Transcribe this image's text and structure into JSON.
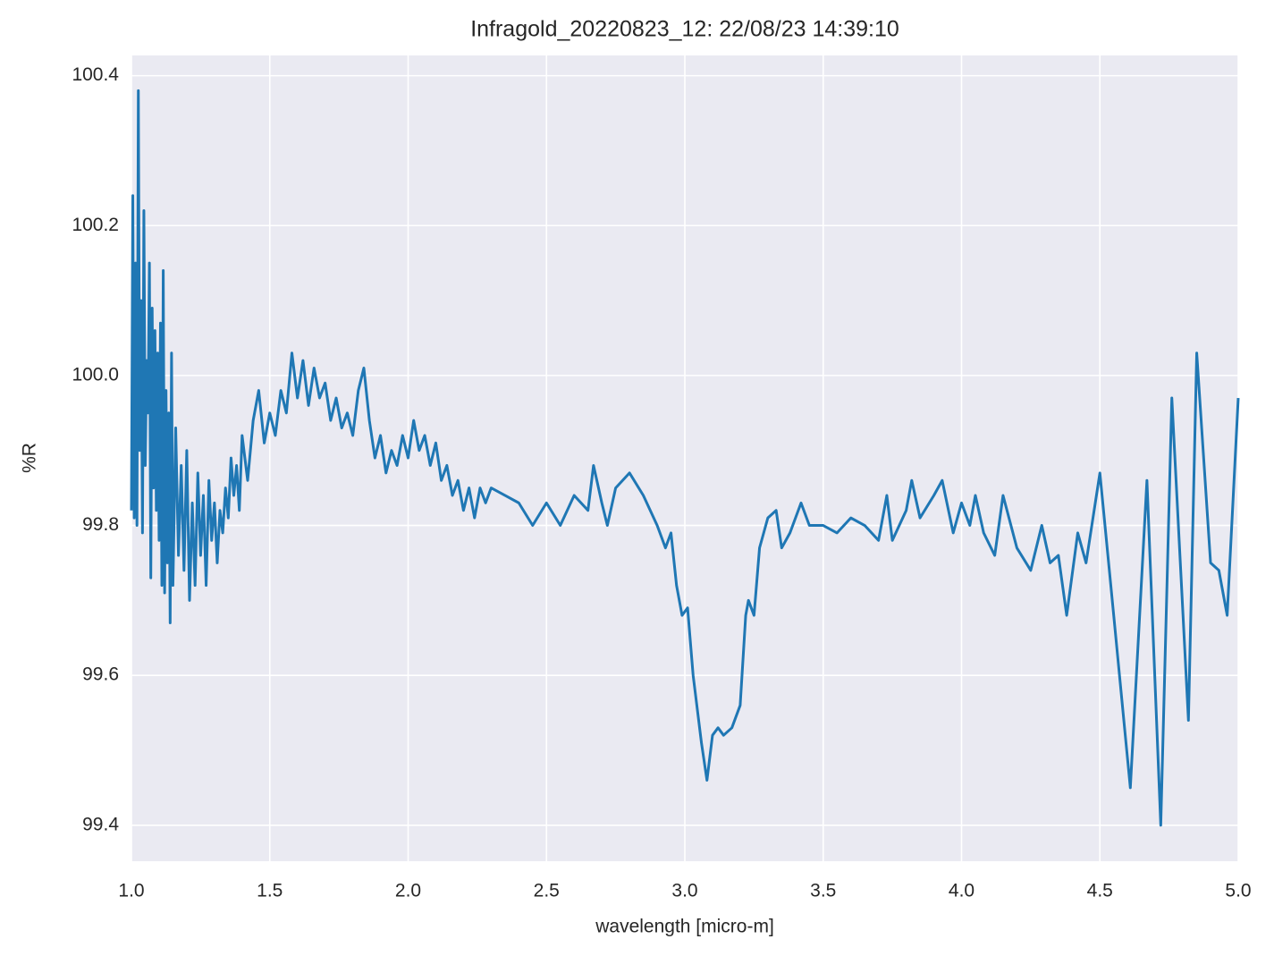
{
  "chart_data": {
    "type": "line",
    "title": "Infragold_20220823_12:  22/08/23 14:39:10",
    "xlabel": "wavelength [micro-m]",
    "ylabel": "%R",
    "x": [
      1.0,
      1.005,
      1.01,
      1.015,
      1.02,
      1.025,
      1.03,
      1.035,
      1.04,
      1.045,
      1.05,
      1.055,
      1.06,
      1.065,
      1.07,
      1.075,
      1.08,
      1.085,
      1.09,
      1.095,
      1.1,
      1.105,
      1.11,
      1.115,
      1.12,
      1.125,
      1.13,
      1.135,
      1.14,
      1.145,
      1.15,
      1.16,
      1.17,
      1.18,
      1.19,
      1.2,
      1.21,
      1.22,
      1.23,
      1.24,
      1.25,
      1.26,
      1.27,
      1.28,
      1.29,
      1.3,
      1.31,
      1.32,
      1.33,
      1.34,
      1.35,
      1.36,
      1.37,
      1.38,
      1.39,
      1.4,
      1.42,
      1.44,
      1.46,
      1.48,
      1.5,
      1.52,
      1.54,
      1.56,
      1.58,
      1.6,
      1.62,
      1.64,
      1.66,
      1.68,
      1.7,
      1.72,
      1.74,
      1.76,
      1.78,
      1.8,
      1.82,
      1.84,
      1.86,
      1.88,
      1.9,
      1.92,
      1.94,
      1.96,
      1.98,
      2.0,
      2.02,
      2.04,
      2.06,
      2.08,
      2.1,
      2.12,
      2.14,
      2.16,
      2.18,
      2.2,
      2.22,
      2.24,
      2.26,
      2.28,
      2.3,
      2.35,
      2.4,
      2.45,
      2.5,
      2.55,
      2.6,
      2.65,
      2.67,
      2.7,
      2.72,
      2.75,
      2.8,
      2.85,
      2.9,
      2.93,
      2.95,
      2.97,
      2.99,
      3.01,
      3.03,
      3.06,
      3.08,
      3.1,
      3.12,
      3.14,
      3.17,
      3.2,
      3.22,
      3.23,
      3.25,
      3.27,
      3.3,
      3.33,
      3.35,
      3.38,
      3.42,
      3.45,
      3.5,
      3.55,
      3.6,
      3.65,
      3.7,
      3.73,
      3.75,
      3.8,
      3.82,
      3.85,
      3.9,
      3.93,
      3.97,
      4.0,
      4.03,
      4.05,
      4.08,
      4.12,
      4.15,
      4.2,
      4.25,
      4.29,
      4.32,
      4.35,
      4.38,
      4.42,
      4.45,
      4.5,
      4.55,
      4.61,
      4.67,
      4.72,
      4.76,
      4.82,
      4.85,
      4.9,
      4.93,
      4.96,
      5.0
    ],
    "series": [
      {
        "color": "#1f77b4",
        "values": [
          99.82,
          100.24,
          99.81,
          100.15,
          99.8,
          100.38,
          99.9,
          100.1,
          99.79,
          100.22,
          99.88,
          100.02,
          99.95,
          100.15,
          99.73,
          100.09,
          99.85,
          100.06,
          99.82,
          100.03,
          99.78,
          100.07,
          99.72,
          100.14,
          99.71,
          99.98,
          99.75,
          99.95,
          99.67,
          100.03,
          99.72,
          99.93,
          99.76,
          99.88,
          99.74,
          99.9,
          99.7,
          99.83,
          99.72,
          99.87,
          99.76,
          99.84,
          99.72,
          99.86,
          99.78,
          99.83,
          99.75,
          99.82,
          99.79,
          99.85,
          99.81,
          99.89,
          99.84,
          99.88,
          99.82,
          99.92,
          99.86,
          99.94,
          99.98,
          99.91,
          99.95,
          99.92,
          99.98,
          99.95,
          100.03,
          99.97,
          100.02,
          99.96,
          100.01,
          99.97,
          99.99,
          99.94,
          99.97,
          99.93,
          99.95,
          99.92,
          99.98,
          100.01,
          99.94,
          99.89,
          99.92,
          99.87,
          99.9,
          99.88,
          99.92,
          99.89,
          99.94,
          99.9,
          99.92,
          99.88,
          99.91,
          99.86,
          99.88,
          99.84,
          99.86,
          99.82,
          99.85,
          99.81,
          99.85,
          99.83,
          99.85,
          99.84,
          99.83,
          99.8,
          99.83,
          99.8,
          99.84,
          99.82,
          99.88,
          99.83,
          99.8,
          99.85,
          99.87,
          99.84,
          99.8,
          99.77,
          99.79,
          99.72,
          99.68,
          99.69,
          99.6,
          99.51,
          99.46,
          99.52,
          99.53,
          99.52,
          99.53,
          99.56,
          99.68,
          99.7,
          99.68,
          99.77,
          99.81,
          99.82,
          99.77,
          99.79,
          99.83,
          99.8,
          99.8,
          99.79,
          99.81,
          99.8,
          99.78,
          99.84,
          99.78,
          99.82,
          99.86,
          99.81,
          99.84,
          99.86,
          99.79,
          99.83,
          99.8,
          99.84,
          99.79,
          99.76,
          99.84,
          99.77,
          99.74,
          99.8,
          99.75,
          99.76,
          99.68,
          99.79,
          99.75,
          99.87,
          99.68,
          99.45,
          99.86,
          99.4,
          99.97,
          99.54,
          100.03,
          99.75,
          99.74,
          99.68,
          99.97
        ]
      }
    ],
    "xlim": [
      1.0,
      5.0
    ],
    "xticks": [
      {
        "value": 1,
        "label": "1.0"
      },
      1.5,
      {
        "value": 2,
        "label": "2.0"
      },
      2.5,
      {
        "value": 3,
        "label": "3.0"
      },
      3.5,
      {
        "value": 4,
        "label": "4.0"
      },
      4.5,
      {
        "value": 5,
        "label": "5.0"
      }
    ],
    "ylim": [
      99.352,
      100.427
    ],
    "yticks": [
      99.4,
      99.6,
      99.8,
      {
        "value": 100,
        "label": "100.0"
      },
      100.2,
      100.4
    ],
    "grid": true
  }
}
